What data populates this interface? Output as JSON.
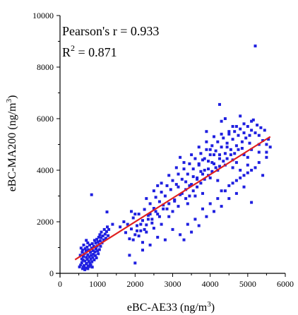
{
  "chart_data": {
    "type": "scatter",
    "title": "",
    "xlabel": "eBC-AE33 (ng/m",
    "xlabel_sup": "3",
    "xlabel_end": ")",
    "ylabel": "eBC-MA200 (ng/m",
    "ylabel_sup": "3",
    "ylabel_end": ")",
    "xlim": [
      0,
      6000
    ],
    "ylim": [
      0,
      10000
    ],
    "xticks": [
      0,
      1000,
      2000,
      3000,
      4000,
      5000,
      6000
    ],
    "yticks": [
      0,
      2000,
      4000,
      6000,
      8000,
      10000
    ],
    "xtick_labels": [
      "0",
      "1000",
      "2000",
      "3000",
      "4000",
      "5000",
      "6000"
    ],
    "ytick_labels": [
      "0",
      "2000",
      "4000",
      "6000",
      "8000",
      "10000"
    ],
    "grid": false,
    "point_color": "#1f1fe0",
    "fit_color": "#e02020",
    "stats": {
      "pearson_label": "Pearson's r = 0.933",
      "r2_prefix": "R",
      "r2_sup": "2",
      "r2_value": " = 0.871"
    },
    "fit_line": {
      "x": [
        400,
        5600
      ],
      "y": [
        530,
        5300
      ]
    },
    "series": [
      {
        "points": [
          [
            520,
            250
          ],
          [
            550,
            320
          ],
          [
            580,
            410
          ],
          [
            600,
            180
          ],
          [
            610,
            520
          ],
          [
            620,
            650
          ],
          [
            640,
            300
          ],
          [
            650,
            760
          ],
          [
            660,
            480
          ],
          [
            680,
            210
          ],
          [
            690,
            880
          ],
          [
            700,
            620
          ],
          [
            710,
            390
          ],
          [
            720,
            1020
          ],
          [
            730,
            540
          ],
          [
            740,
            720
          ],
          [
            750,
            280
          ],
          [
            760,
            910
          ],
          [
            770,
            460
          ],
          [
            780,
            640
          ],
          [
            790,
            1100
          ],
          [
            800,
            380
          ],
          [
            810,
            820
          ],
          [
            820,
            560
          ],
          [
            830,
            700
          ],
          [
            840,
            980
          ],
          [
            850,
            450
          ],
          [
            860,
            1150
          ],
          [
            870,
            620
          ],
          [
            880,
            880
          ],
          [
            890,
            740
          ],
          [
            900,
            1050
          ],
          [
            910,
            520
          ],
          [
            920,
            1280
          ],
          [
            930,
            830
          ],
          [
            940,
            690
          ],
          [
            950,
            1180
          ],
          [
            960,
            950
          ],
          [
            970,
            600
          ],
          [
            980,
            1320
          ],
          [
            990,
            1060
          ],
          [
            1000,
            870
          ],
          [
            1010,
            1220
          ],
          [
            1020,
            760
          ],
          [
            1030,
            1400
          ],
          [
            1040,
            1130
          ],
          [
            1050,
            920
          ],
          [
            1060,
            1500
          ],
          [
            1070,
            1260
          ],
          [
            1080,
            1050
          ],
          [
            1090,
            1380
          ],
          [
            1100,
            1600
          ],
          [
            1120,
            1180
          ],
          [
            1140,
            1450
          ],
          [
            1160,
            1300
          ],
          [
            1180,
            1700
          ],
          [
            1200,
            1520
          ],
          [
            1220,
            1360
          ],
          [
            1240,
            1620
          ],
          [
            1260,
            1800
          ],
          [
            1280,
            1460
          ],
          [
            1300,
            1700
          ],
          [
            560,
            980
          ],
          [
            590,
            820
          ],
          [
            630,
            1100
          ],
          [
            670,
            960
          ],
          [
            700,
            1280
          ],
          [
            740,
            1180
          ],
          [
            580,
            560
          ],
          [
            620,
            240
          ],
          [
            660,
            140
          ],
          [
            700,
            360
          ],
          [
            740,
            180
          ],
          [
            780,
            260
          ],
          [
            820,
            320
          ],
          [
            860,
            240
          ],
          [
            540,
            700
          ],
          [
            600,
            900
          ],
          [
            840,
            3050
          ],
          [
            1250,
            2380
          ],
          [
            1400,
            1900
          ],
          [
            1750,
            1580
          ],
          [
            1800,
            1900
          ],
          [
            1850,
            1340
          ],
          [
            1900,
            1720
          ],
          [
            1950,
            2150
          ],
          [
            2000,
            1500
          ],
          [
            2050,
            1850
          ],
          [
            2100,
            2300
          ],
          [
            2150,
            1650
          ],
          [
            2200,
            2050
          ],
          [
            2250,
            2480
          ],
          [
            2300,
            1880
          ],
          [
            2350,
            2250
          ],
          [
            2400,
            2700
          ],
          [
            2450,
            2100
          ],
          [
            2500,
            2520
          ],
          [
            2550,
            2950
          ],
          [
            2600,
            2300
          ],
          [
            2650,
            2780
          ],
          [
            2700,
            3150
          ],
          [
            2750,
            2500
          ],
          [
            2800,
            3000
          ],
          [
            2850,
            3400
          ],
          [
            2900,
            2700
          ],
          [
            2950,
            3250
          ],
          [
            3000,
            3600
          ],
          [
            3050,
            2850
          ],
          [
            3100,
            3450
          ],
          [
            3150,
            3850
          ],
          [
            3200,
            3050
          ],
          [
            3250,
            3650
          ],
          [
            3300,
            4050
          ],
          [
            3350,
            3250
          ],
          [
            3400,
            3850
          ],
          [
            3450,
            4250
          ],
          [
            3500,
            3450
          ],
          [
            3550,
            4050
          ],
          [
            3600,
            4450
          ],
          [
            3650,
            3650
          ],
          [
            3700,
            4250
          ],
          [
            3750,
            4650
          ],
          [
            3800,
            3850
          ],
          [
            3850,
            4450
          ],
          [
            3900,
            4800
          ],
          [
            3950,
            4050
          ],
          [
            4000,
            4600
          ],
          [
            4050,
            4950
          ],
          [
            4100,
            4250
          ],
          [
            4150,
            4750
          ],
          [
            4200,
            5100
          ],
          [
            4250,
            4450
          ],
          [
            4300,
            4900
          ],
          [
            4350,
            5250
          ],
          [
            4400,
            4650
          ],
          [
            4450,
            5050
          ],
          [
            4500,
            5400
          ],
          [
            4550,
            4800
          ],
          [
            4600,
            5200
          ],
          [
            4650,
            5500
          ],
          [
            4700,
            4950
          ],
          [
            4750,
            5350
          ],
          [
            4800,
            5600
          ],
          [
            4850,
            5100
          ],
          [
            4900,
            5450
          ],
          [
            4950,
            5250
          ],
          [
            5000,
            5700
          ],
          [
            5050,
            5350
          ],
          [
            5100,
            5550
          ],
          [
            5150,
            5950
          ],
          [
            5200,
            5450
          ],
          [
            5250,
            5750
          ],
          [
            5300,
            5350
          ],
          [
            5350,
            5650
          ],
          [
            5400,
            5150
          ],
          [
            5450,
            5550
          ],
          [
            5500,
            5000
          ],
          [
            5550,
            5200
          ],
          [
            5600,
            4900
          ],
          [
            2200,
            1200
          ],
          [
            2400,
            1100
          ],
          [
            2600,
            1400
          ],
          [
            2800,
            1300
          ],
          [
            3000,
            1700
          ],
          [
            3200,
            1500
          ],
          [
            3400,
            1900
          ],
          [
            3600,
            2100
          ],
          [
            3800,
            2500
          ],
          [
            4000,
            2700
          ],
          [
            4200,
            2900
          ],
          [
            4400,
            3200
          ],
          [
            4600,
            3500
          ],
          [
            4800,
            3700
          ],
          [
            5000,
            3900
          ],
          [
            5200,
            4100
          ],
          [
            5400,
            3800
          ],
          [
            5100,
            2750
          ],
          [
            3300,
            1300
          ],
          [
            3500,
            1600
          ],
          [
            3700,
            1850
          ],
          [
            3900,
            2200
          ],
          [
            4100,
            2400
          ],
          [
            4300,
            2600
          ],
          [
            4500,
            2900
          ],
          [
            4700,
            3100
          ],
          [
            4900,
            3350
          ],
          [
            2300,
            2900
          ],
          [
            2500,
            3200
          ],
          [
            2700,
            3500
          ],
          [
            2900,
            3800
          ],
          [
            3100,
            4100
          ],
          [
            3300,
            4300
          ],
          [
            3500,
            4600
          ],
          [
            3700,
            4900
          ],
          [
            3900,
            5100
          ],
          [
            4100,
            5300
          ],
          [
            4300,
            5400
          ],
          [
            4500,
            5500
          ],
          [
            4700,
            5700
          ],
          [
            3200,
            4500
          ],
          [
            2600,
            3400
          ],
          [
            2400,
            2300
          ],
          [
            2900,
            2200
          ],
          [
            3400,
            2700
          ],
          [
            3800,
            3100
          ],
          [
            4200,
            3600
          ],
          [
            4600,
            4100
          ],
          [
            5000,
            4500
          ],
          [
            5300,
            4700
          ],
          [
            3600,
            3000
          ],
          [
            3000,
            2400
          ],
          [
            2700,
            1900
          ],
          [
            2000,
            2300
          ],
          [
            1900,
            2400
          ],
          [
            1700,
            2000
          ],
          [
            1600,
            1800
          ],
          [
            2100,
            1450
          ],
          [
            2300,
            1600
          ],
          [
            2500,
            1750
          ],
          [
            2200,
            900
          ],
          [
            1850,
            700
          ],
          [
            2000,
            400
          ],
          [
            4250,
            6550
          ],
          [
            5200,
            8820
          ],
          [
            4800,
            6100
          ],
          [
            5100,
            5900
          ],
          [
            4300,
            5900
          ],
          [
            4600,
            5700
          ],
          [
            4900,
            5800
          ],
          [
            3900,
            5500
          ],
          [
            4400,
            6000
          ],
          [
            4700,
            4300
          ],
          [
            4900,
            4600
          ],
          [
            5100,
            4800
          ],
          [
            5300,
            5000
          ],
          [
            5500,
            4700
          ],
          [
            4000,
            3700
          ],
          [
            4200,
            4000
          ],
          [
            4400,
            4200
          ],
          [
            4600,
            4400
          ],
          [
            3450,
            3000
          ],
          [
            3650,
            3350
          ],
          [
            3850,
            3650
          ],
          [
            4050,
            3950
          ],
          [
            4250,
            4150
          ],
          [
            4450,
            4450
          ],
          [
            4650,
            4650
          ],
          [
            4850,
            4850
          ],
          [
            5050,
            5050
          ],
          [
            3150,
            2600
          ],
          [
            3350,
            2900
          ],
          [
            3550,
            3200
          ],
          [
            3750,
            3500
          ],
          [
            3950,
            3800
          ],
          [
            4150,
            4100
          ],
          [
            4350,
            4350
          ],
          [
            4550,
            4600
          ],
          [
            4750,
            4800
          ],
          [
            2850,
            2500
          ],
          [
            3050,
            2800
          ],
          [
            3250,
            3100
          ],
          [
            3450,
            3400
          ],
          [
            3650,
            3700
          ],
          [
            3850,
            4000
          ],
          [
            4050,
            4300
          ],
          [
            4250,
            4600
          ],
          [
            4450,
            4900
          ],
          [
            2650,
            2200
          ],
          [
            2450,
            1950
          ],
          [
            2250,
            1700
          ],
          [
            2050,
            1650
          ],
          [
            1950,
            1300
          ],
          [
            2150,
            1900
          ],
          [
            2350,
            2100
          ],
          [
            2550,
            2400
          ],
          [
            2750,
            2650
          ],
          [
            3700,
            4200
          ],
          [
            3800,
            4400
          ],
          [
            4000,
            4800
          ],
          [
            4100,
            4600
          ],
          [
            3950,
            4350
          ],
          [
            3750,
            3950
          ],
          [
            3550,
            3750
          ],
          [
            3350,
            3550
          ],
          [
            3150,
            3350
          ],
          [
            4300,
            3200
          ],
          [
            4500,
            3400
          ],
          [
            4700,
            3600
          ],
          [
            4900,
            3800
          ],
          [
            5100,
            4000
          ],
          [
            5300,
            4300
          ],
          [
            5500,
            4500
          ],
          [
            4800,
            4000
          ],
          [
            5000,
            4200
          ]
        ]
      }
    ]
  }
}
